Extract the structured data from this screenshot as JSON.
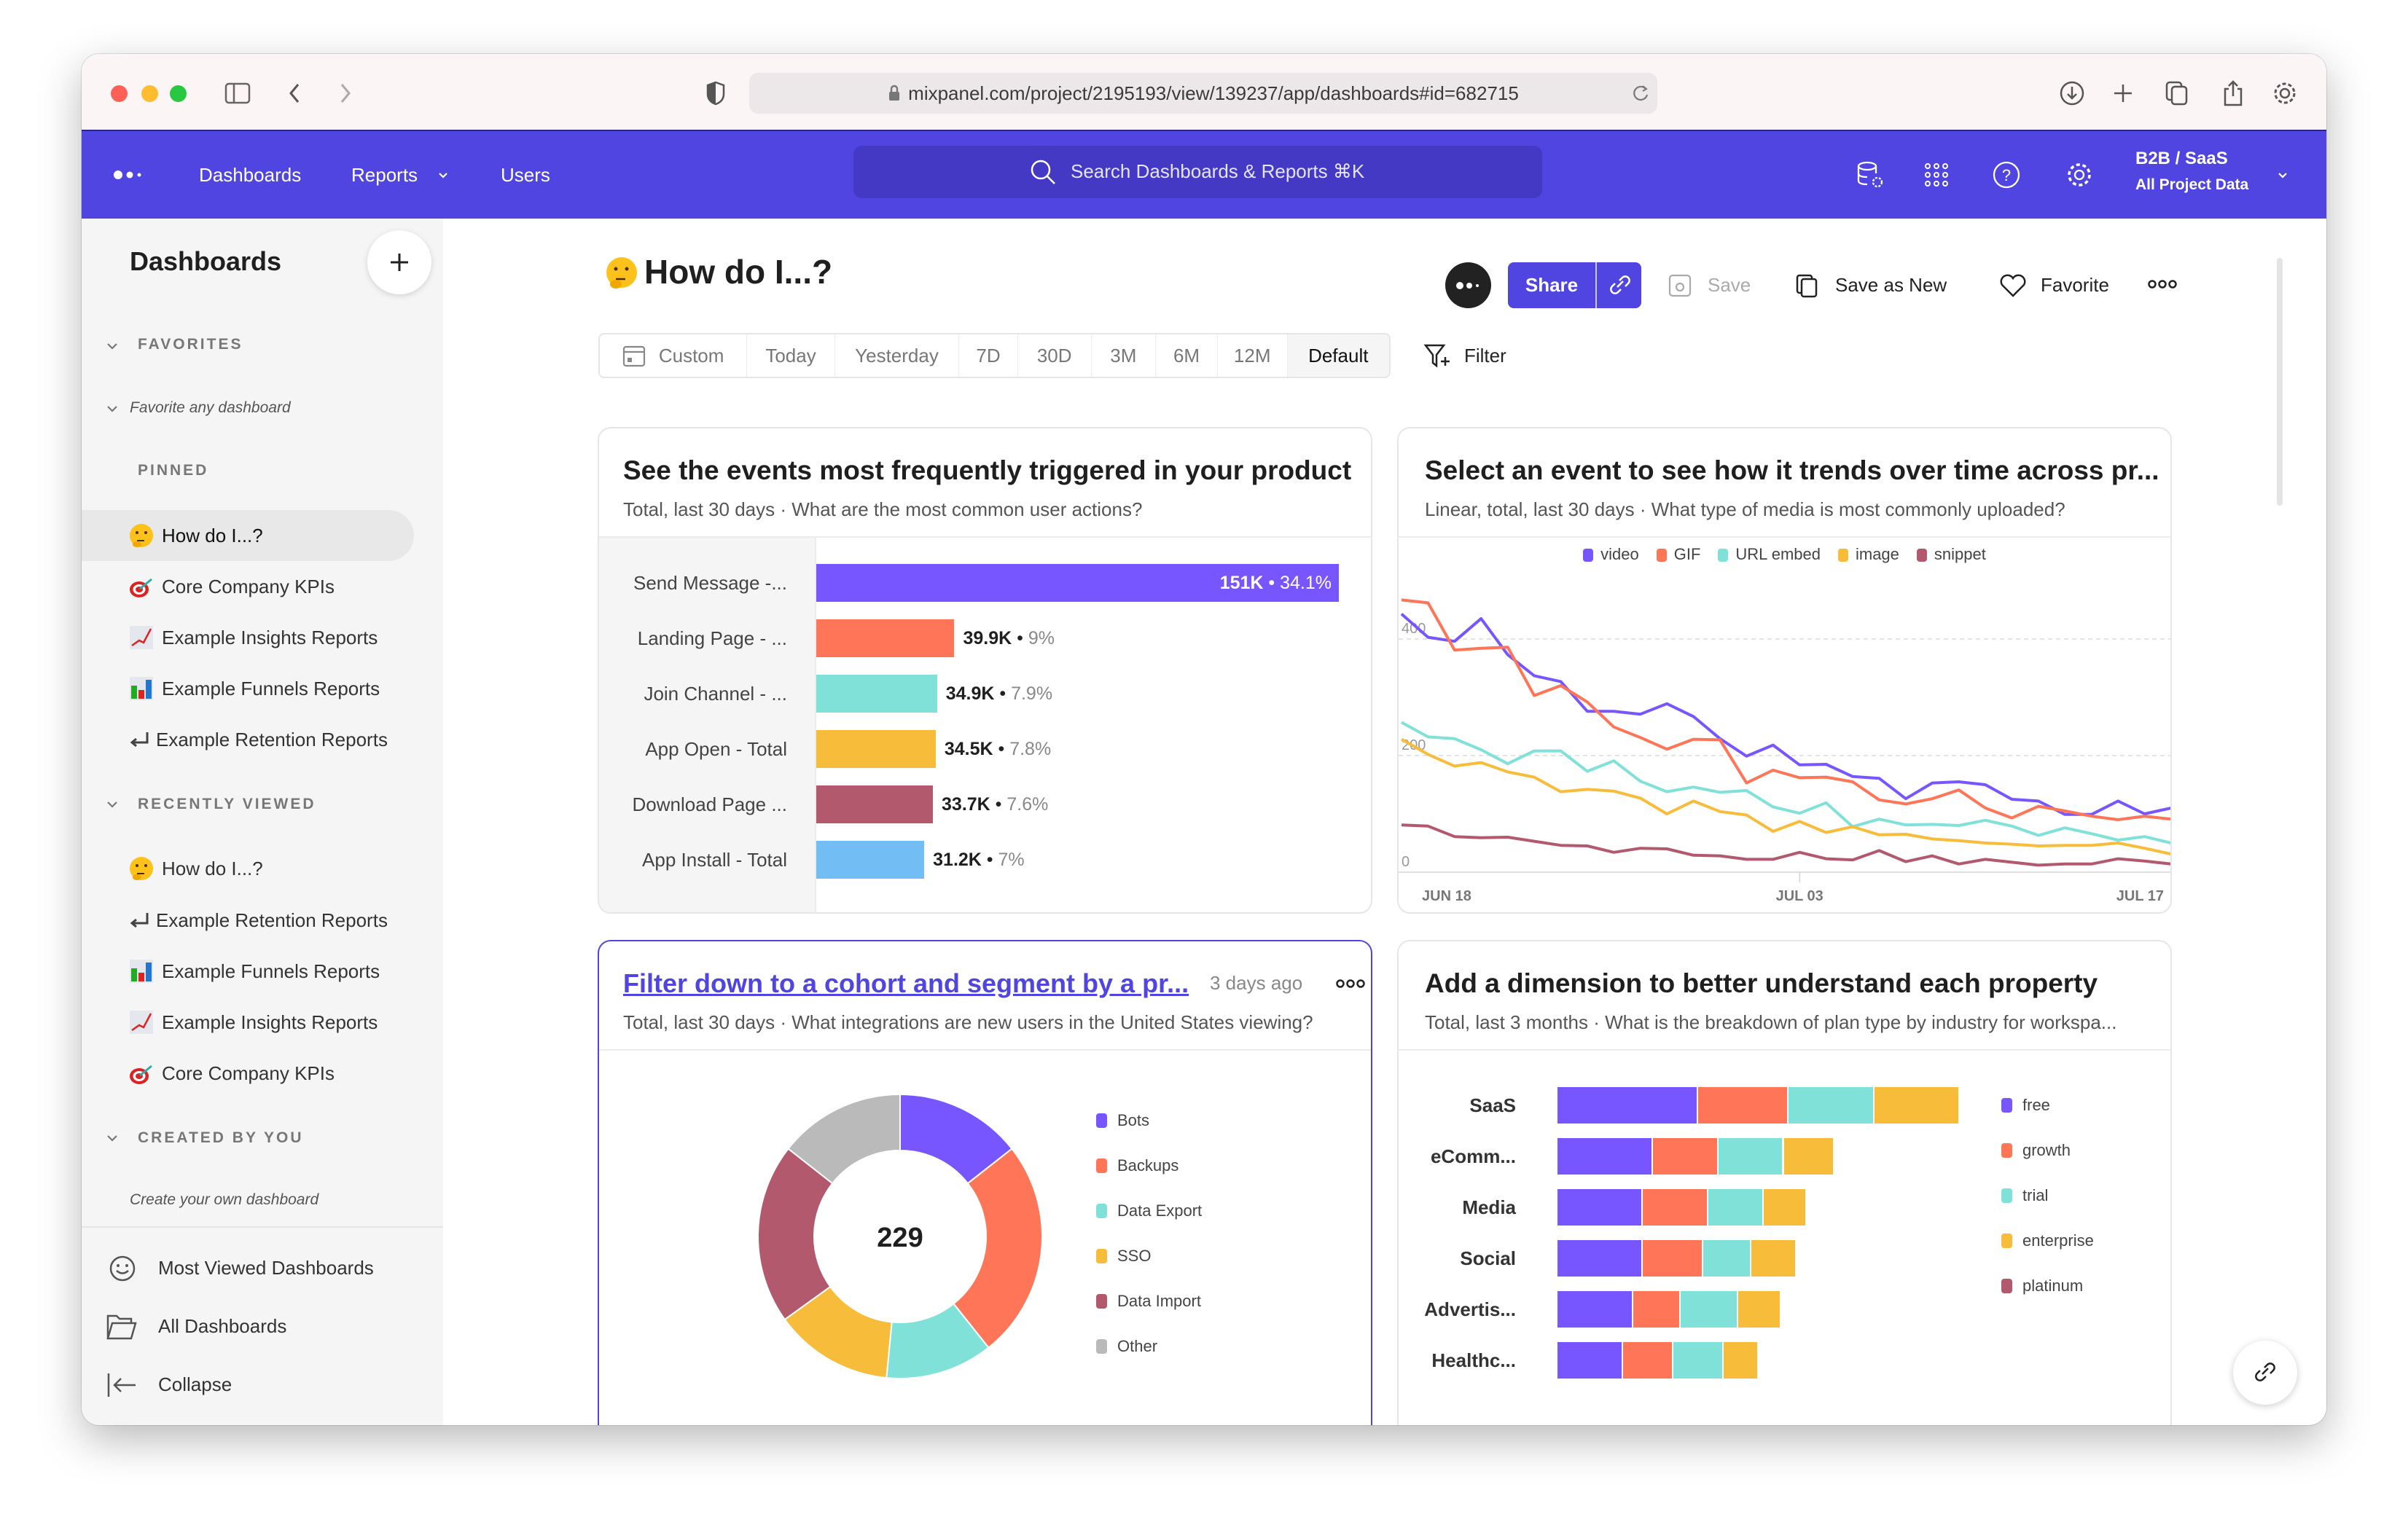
{
  "browser": {
    "url": "mixpanel.com/project/2195193/view/139237/app/dashboards#id=682715"
  },
  "nav": {
    "items": [
      "Dashboards",
      "Reports",
      "Users"
    ],
    "search_placeholder": "Search Dashboards & Reports ⌘K",
    "project": "B2B / SaaS",
    "project_sub": "All Project Data",
    "brand_color": "#5045e0"
  },
  "sidebar": {
    "title": "Dashboards",
    "favorites": {
      "label": "FAVORITES",
      "hint": "Favorite any dashboard"
    },
    "pinned": {
      "label": "PINNED",
      "items": [
        "How do I...?",
        "Core Company KPIs",
        "Example Insights Reports",
        "Example Funnels Reports",
        "Example Retention Reports"
      ],
      "selected": "How do I...?"
    },
    "recent": {
      "label": "RECENTLY VIEWED",
      "items": [
        "How do I...?",
        "Example Retention Reports",
        "Example Funnels Reports",
        "Example Insights Reports",
        "Core Company KPIs"
      ]
    },
    "created": {
      "label": "CREATED BY YOU",
      "hint": "Create your own dashboard"
    },
    "bottom": [
      "Most Viewed Dashboards",
      "All Dashboards",
      "Collapse"
    ]
  },
  "header": {
    "title": "How do I...?",
    "share": "Share",
    "save": "Save",
    "save_as_new": "Save as New",
    "favorite": "Favorite"
  },
  "date_range": {
    "options": [
      "Custom",
      "Today",
      "Yesterday",
      "7D",
      "30D",
      "3M",
      "6M",
      "12M",
      "Default"
    ],
    "selected": "Default",
    "filter": "Filter"
  },
  "card3_meta": {
    "timestamp": "3 days ago"
  },
  "chart_data": [
    {
      "type": "bar",
      "orientation": "horizontal",
      "title": "See the events most frequently triggered in your product",
      "subtitle": "Total, last 30 days · What are the most common user actions?",
      "categories": [
        "Send Message -...",
        "Landing Page - ...",
        "Join Channel - ...",
        "App Open - Total",
        "Download Page ...",
        "App Install - Total"
      ],
      "values": [
        151000,
        39900,
        34900,
        34500,
        33700,
        31200
      ],
      "value_labels": [
        "151K",
        "39.9K",
        "34.9K",
        "34.5K",
        "33.7K",
        "31.2K"
      ],
      "percent_labels": [
        "34.1%",
        "9%",
        "7.9%",
        "7.8%",
        "7.6%",
        "7%"
      ],
      "colors": [
        "#7856ff",
        "#ff7557",
        "#80e1d9",
        "#f8bc3b",
        "#b2596e",
        "#72bef4"
      ]
    },
    {
      "type": "line",
      "title": "Select an event to see how it trends over time across pr...",
      "subtitle": "Linear, total, last 30 days · What type of media is most commonly uploaded?",
      "x": [
        "Jun 18",
        "Jun 19",
        "Jun 20",
        "Jun 21",
        "Jun 22",
        "Jun 23",
        "Jun 24",
        "Jun 25",
        "Jun 26",
        "Jun 27",
        "Jun 28",
        "Jun 29",
        "Jun 30",
        "Jul 01",
        "Jul 02",
        "Jul 03",
        "Jul 04",
        "Jul 05",
        "Jul 06",
        "Jul 07",
        "Jul 08",
        "Jul 09",
        "Jul 10",
        "Jul 11",
        "Jul 12",
        "Jul 13",
        "Jul 14",
        "Jul 15",
        "Jul 16",
        "Jul 17"
      ],
      "x_ticks": [
        "JUN 18",
        "JUL 03",
        "JUL 17"
      ],
      "y_ticks": [
        0,
        200,
        400
      ],
      "ylim": [
        0,
        480
      ],
      "grid": true,
      "legend": "top",
      "series": [
        {
          "name": "video",
          "color": "#7856ff",
          "values": [
            443,
            403,
            396,
            435,
            373,
            337,
            327,
            276,
            276,
            271,
            289,
            267,
            229,
            199,
            218,
            184,
            185,
            164,
            161,
            126,
            153,
            155,
            150,
            125,
            122,
            99,
            99,
            122,
            100,
            110
          ]
        },
        {
          "name": "GIF",
          "color": "#ff7557",
          "values": [
            467,
            462,
            381,
            384,
            386,
            303,
            320,
            292,
            249,
            231,
            211,
            228,
            227,
            153,
            175,
            162,
            163,
            155,
            124,
            117,
            126,
            141,
            110,
            93,
            113,
            105,
            96,
            90,
            96,
            91
          ]
        },
        {
          "name": "URL embed",
          "color": "#80e1d9",
          "values": [
            257,
            232,
            229,
            210,
            186,
            208,
            208,
            173,
            191,
            156,
            138,
            146,
            137,
            140,
            112,
            101,
            119,
            78,
            91,
            81,
            82,
            80,
            89,
            79,
            63,
            76,
            66,
            55,
            61,
            50
          ]
        },
        {
          "name": "image",
          "color": "#f8bc3b",
          "values": [
            228,
            202,
            182,
            188,
            172,
            163,
            138,
            142,
            139,
            127,
            100,
            122,
            104,
            98,
            70,
            87,
            68,
            78,
            64,
            65,
            57,
            54,
            50,
            48,
            45,
            46,
            46,
            50,
            41,
            31
          ]
        },
        {
          "name": "snippet",
          "color": "#b2596e",
          "values": [
            81,
            79,
            61,
            59,
            60,
            53,
            46,
            45,
            34,
            41,
            40,
            29,
            28,
            22,
            22,
            34,
            23,
            21,
            37,
            18,
            28,
            14,
            22,
            17,
            12,
            14,
            14,
            23,
            19,
            14
          ]
        }
      ]
    },
    {
      "type": "pie",
      "donut": true,
      "title": "Filter down to a cohort and segment by a pr...",
      "subtitle": "Total, last 30 days · What integrations are new users in the United States viewing?",
      "total": 229,
      "categories": [
        "Bots",
        "Backups",
        "Data Export",
        "SSO",
        "Data Import",
        "Other"
      ],
      "values": [
        33,
        57,
        28,
        31,
        47,
        33
      ],
      "colors": [
        "#7856ff",
        "#ff7557",
        "#80e1d9",
        "#f8bc3b",
        "#b2596e",
        "#bababa"
      ],
      "legend": "right"
    },
    {
      "type": "bar",
      "orientation": "horizontal",
      "stacked": true,
      "title": "Add a dimension to better understand each property",
      "subtitle": "Total, last 3 months · What is the breakdown of plan type by industry for workspa...",
      "categories": [
        "SaaS",
        "eComm...",
        "Media",
        "Social",
        "Advertis...",
        "Healthc..."
      ],
      "series": [
        {
          "name": "free",
          "color": "#7856ff",
          "values": [
            28,
            19,
            17,
            17,
            15,
            13
          ]
        },
        {
          "name": "growth",
          "color": "#ff7557",
          "values": [
            18,
            13,
            13,
            12,
            9.5,
            10
          ]
        },
        {
          "name": "trial",
          "color": "#80e1d9",
          "values": [
            17,
            13,
            11,
            9.5,
            11.5,
            10
          ]
        },
        {
          "name": "enterprise",
          "color": "#f8bc3b",
          "values": [
            17,
            10,
            8.5,
            9,
            8.5,
            7
          ]
        },
        {
          "name": "platinum",
          "color": "#b2596e",
          "values": [
            0,
            0,
            0,
            0,
            0,
            0
          ]
        }
      ],
      "legend": "right"
    }
  ]
}
